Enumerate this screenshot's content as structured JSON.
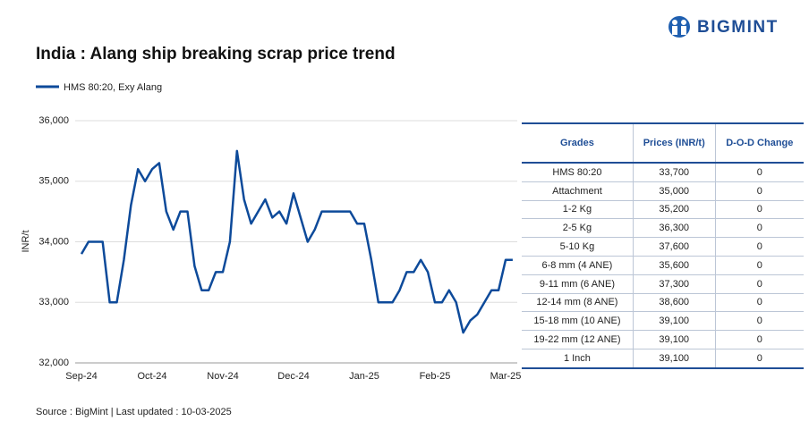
{
  "logo": "BIGMINT",
  "source": "Source : BigMint | Last updated : 10-03-2025",
  "chart_data": {
    "type": "line",
    "title": "India : Alang ship breaking scrap price trend",
    "y_label": "INR/t",
    "categories": [
      "Sep-24",
      null,
      null,
      null,
      null,
      null,
      null,
      null,
      null,
      null,
      "Oct-24",
      null,
      null,
      null,
      null,
      null,
      null,
      null,
      null,
      null,
      "Nov-24",
      null,
      null,
      null,
      null,
      null,
      null,
      null,
      null,
      null,
      "Dec-24",
      null,
      null,
      null,
      null,
      null,
      null,
      null,
      null,
      null,
      "Jan-25",
      null,
      null,
      null,
      null,
      null,
      null,
      null,
      null,
      null,
      "Feb-25",
      null,
      null,
      null,
      null,
      null,
      null,
      null,
      null,
      null,
      "Mar-25",
      null
    ],
    "series": [
      {
        "name": "HMS 80:20, Exy Alang",
        "color": "#0d4a9a",
        "values": [
          33800,
          34000,
          34000,
          34000,
          33000,
          33000,
          33700,
          34600,
          35200,
          35000,
          35200,
          35300,
          34500,
          34200,
          34500,
          34500,
          33600,
          33200,
          33200,
          33500,
          33500,
          34000,
          35500,
          34700,
          34300,
          34500,
          34700,
          34400,
          34500,
          34300,
          34800,
          34400,
          34000,
          34200,
          34500,
          34500,
          34500,
          34500,
          34500,
          34300,
          34300,
          33700,
          33000,
          33000,
          33000,
          33200,
          33500,
          33500,
          33700,
          33500,
          33000,
          33000,
          33200,
          33000,
          32500,
          32700,
          32800,
          33000,
          33200,
          33200,
          33700,
          33700
        ]
      }
    ],
    "ylim": [
      32000,
      36000
    ],
    "yticks": [
      {
        "value": 32000,
        "label": "32,000"
      },
      {
        "value": 33000,
        "label": "33,000"
      },
      {
        "value": 34000,
        "label": "34,000"
      },
      {
        "value": 35000,
        "label": "35,000"
      },
      {
        "value": 36000,
        "label": "36,000"
      }
    ],
    "grid": true
  },
  "table": {
    "header": [
      "Grades",
      "Prices (INR/t)",
      "D-O-D Change"
    ],
    "rows": [
      [
        "HMS 80:20",
        "33,700",
        "0"
      ],
      [
        "Attachment",
        "35,000",
        "0"
      ],
      [
        "1-2 Kg",
        "35,200",
        "0"
      ],
      [
        "2-5 Kg",
        "36,300",
        "0"
      ],
      [
        "5-10 Kg",
        "37,600",
        "0"
      ],
      [
        "6-8 mm (4 ANE)",
        "35,600",
        "0"
      ],
      [
        "9-11 mm (6 ANE)",
        "37,300",
        "0"
      ],
      [
        "12-14 mm (8 ANE)",
        "38,600",
        "0"
      ],
      [
        "15-18 mm (10 ANE)",
        "39,100",
        "0"
      ],
      [
        "19-22 mm (12 ANE)",
        "39,100",
        "0"
      ],
      [
        "1 Inch",
        "39,100",
        "0"
      ]
    ]
  }
}
